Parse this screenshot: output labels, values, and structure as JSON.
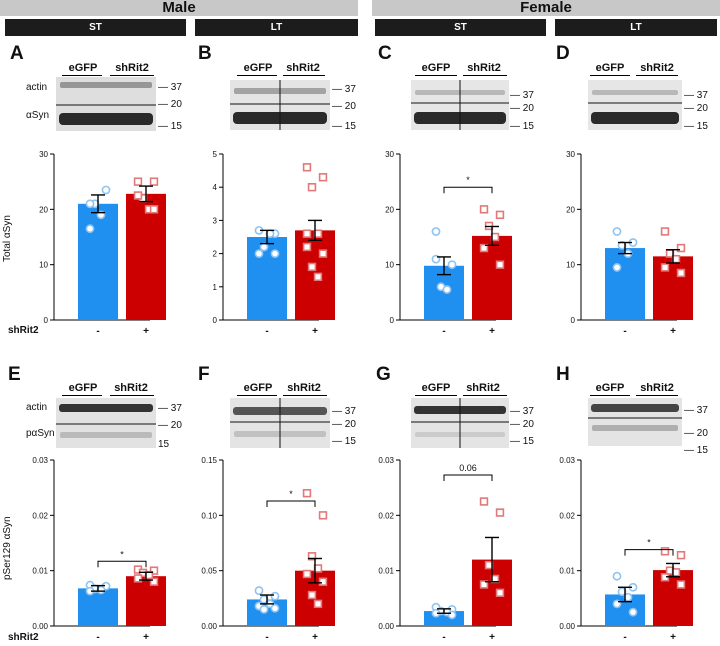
{
  "headers": {
    "male": "Male",
    "female": "Female"
  },
  "conditions": [
    "ST",
    "LT",
    "ST",
    "LT"
  ],
  "panel_labels": [
    "A",
    "B",
    "C",
    "D",
    "E",
    "F",
    "G",
    "H"
  ],
  "blot": {
    "lanes": [
      "eGFP",
      "shRit2"
    ],
    "top_rows": {
      "row1": "actin",
      "row2": "αSyn"
    },
    "bottom_rows": {
      "row1": "actin",
      "row2": "pαSyn"
    },
    "mw_top": [
      "37",
      "20",
      "15"
    ],
    "mw_bottom": [
      "37",
      "20",
      "15"
    ],
    "mw_bottom_h": [
      "37",
      "20",
      "15"
    ]
  },
  "row_labels": {
    "top_y": "Total αSyn",
    "bottom_y": "pSer129 αSyn",
    "shrit2": "shRit2"
  },
  "colors": {
    "egfp": "#1f8ff0",
    "shrit2": "#cc0000",
    "egfp_points": "#8ec3f2",
    "shrit2_points": "#e27878"
  },
  "chart_data": [
    {
      "panel": "A",
      "type": "bar",
      "categories": [
        "-",
        "+"
      ],
      "values": [
        21.0,
        22.8
      ],
      "sem": [
        1.6,
        1.4
      ],
      "points": [
        [
          16.5,
          23.5,
          21.0,
          19.0,
          21.0
        ],
        [
          25.0,
          25.0,
          22.0,
          20.0,
          22.5,
          20.0
        ]
      ],
      "yticks": [
        "0",
        "10",
        "20",
        "30"
      ],
      "ylim": [
        0,
        30
      ]
    },
    {
      "panel": "B",
      "type": "bar",
      "categories": [
        "-",
        "+"
      ],
      "values": [
        2.5,
        2.7
      ],
      "sem": [
        0.2,
        0.3
      ],
      "points": [
        [
          2.7,
          2.6,
          2.2,
          2.6,
          2.0,
          2.0
        ],
        [
          4.6,
          4.3,
          4.0,
          2.6,
          2.2,
          2.0,
          1.6,
          1.3,
          2.6
        ]
      ],
      "yticks": [
        "0",
        "1",
        "2",
        "3",
        "4",
        "5"
      ],
      "ylim": [
        0,
        5
      ]
    },
    {
      "panel": "C",
      "type": "bar",
      "categories": [
        "-",
        "+"
      ],
      "values": [
        9.8,
        15.2
      ],
      "sem": [
        1.6,
        1.7
      ],
      "points": [
        [
          16.0,
          10.0,
          6.0,
          5.5,
          11.0
        ],
        [
          20.0,
          19.0,
          17.0,
          15.0,
          13.0,
          10.0
        ]
      ],
      "yticks": [
        "0",
        "10",
        "20",
        "30"
      ],
      "ylim": [
        0,
        30
      ],
      "sig": {
        "label": "*",
        "y": 24
      }
    },
    {
      "panel": "D",
      "type": "bar",
      "categories": [
        "-",
        "+"
      ],
      "values": [
        13.0,
        11.5
      ],
      "sem": [
        1.0,
        1.2
      ],
      "points": [
        [
          16.0,
          14.0,
          13.5,
          12.0,
          9.5
        ],
        [
          16.0,
          13.0,
          12.0,
          11.0,
          9.5,
          8.5
        ]
      ],
      "yticks": [
        "0",
        "10",
        "20",
        "30"
      ],
      "ylim": [
        0,
        30
      ]
    },
    {
      "panel": "E",
      "type": "bar",
      "categories": [
        "-",
        "+"
      ],
      "values": [
        0.0068,
        0.009
      ],
      "sem": [
        0.0005,
        0.0007
      ],
      "points": [
        [
          0.0074,
          0.0072,
          0.0067,
          0.0065,
          0.0063
        ],
        [
          0.0102,
          0.01,
          0.0096,
          0.0092,
          0.0086,
          0.008
        ]
      ],
      "yticks": [
        "0.00",
        "0.01",
        "0.02",
        "0.03"
      ],
      "ylim": [
        0,
        0.03
      ],
      "sig": {
        "label": "*",
        "y": 0.0117
      }
    },
    {
      "panel": "F",
      "type": "bar",
      "categories": [
        "-",
        "+"
      ],
      "values": [
        0.024,
        0.05
      ],
      "sem": [
        0.004,
        0.011
      ],
      "points": [
        [
          0.032,
          0.027,
          0.024,
          0.02,
          0.018,
          0.016,
          0.015
        ],
        [
          0.12,
          0.1,
          0.063,
          0.052,
          0.047,
          0.04,
          0.028,
          0.02
        ]
      ],
      "yticks": [
        "0.00",
        "0.05",
        "0.10",
        "0.15"
      ],
      "ylim": [
        0,
        0.15
      ],
      "sig": {
        "label": "*",
        "y": 0.113
      }
    },
    {
      "panel": "G",
      "type": "bar",
      "categories": [
        "-",
        "+"
      ],
      "values": [
        0.0027,
        0.012
      ],
      "sem": [
        0.0004,
        0.004
      ],
      "points": [
        [
          0.0034,
          0.003,
          0.0027,
          0.0025,
          0.0023,
          0.002
        ],
        [
          0.0225,
          0.0205,
          0.011,
          0.0085,
          0.0075,
          0.006
        ]
      ],
      "yticks": [
        "0.00",
        "0.01",
        "0.02",
        "0.03"
      ],
      "ylim": [
        0,
        0.03
      ],
      "sig": {
        "label": "0.06",
        "y": 0.0273
      }
    },
    {
      "panel": "H",
      "type": "bar",
      "categories": [
        "-",
        "+"
      ],
      "values": [
        0.0057,
        0.0101
      ],
      "sem": [
        0.0013,
        0.0012
      ],
      "points": [
        [
          0.009,
          0.007,
          0.0062,
          0.0052,
          0.004,
          0.0025
        ],
        [
          0.0135,
          0.0128,
          0.01,
          0.0097,
          0.0088,
          0.0075
        ]
      ],
      "yticks": [
        "0.00",
        "0.01",
        "0.02",
        "0.03"
      ],
      "ylim": [
        0,
        0.03
      ],
      "sig": {
        "label": "*",
        "y": 0.0138
      }
    }
  ]
}
